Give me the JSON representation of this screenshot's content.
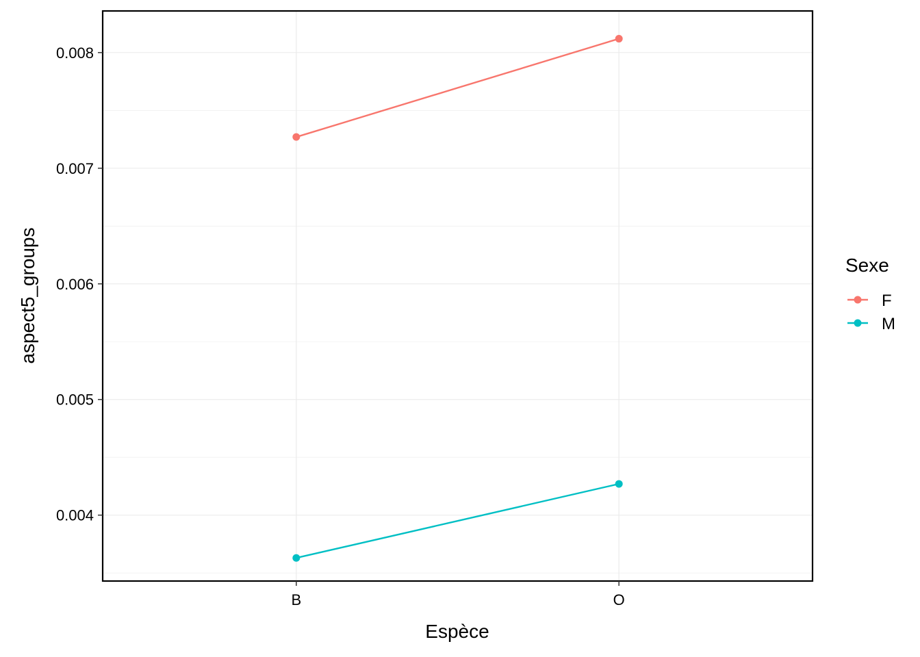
{
  "chart_data": {
    "type": "line",
    "title": "",
    "xlabel": "Espèce",
    "ylabel": "aspect5_groups",
    "categories": [
      "B",
      "O"
    ],
    "ylim": [
      0.00343,
      0.00836
    ],
    "y_ticks": [
      0.004,
      0.005,
      0.006,
      0.007,
      0.008
    ],
    "y_tick_labels": [
      "0.004",
      "0.005",
      "0.006",
      "0.007",
      "0.008"
    ],
    "grid": true,
    "legend": {
      "title": "Sexe",
      "placement": "right"
    },
    "series": [
      {
        "name": "F",
        "color": "#F8766D",
        "values": [
          0.00727,
          0.00812
        ]
      },
      {
        "name": "M",
        "color": "#00BFC4",
        "values": [
          0.00363,
          0.00427
        ]
      }
    ]
  }
}
